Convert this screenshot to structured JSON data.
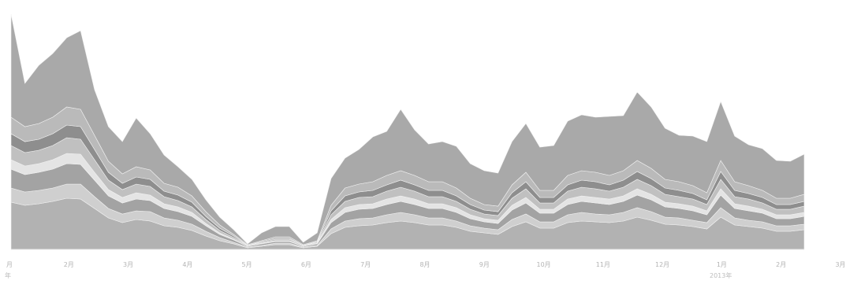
{
  "chart_data": {
    "type": "area",
    "stacked": true,
    "title": "",
    "xlabel": "",
    "ylabel": "",
    "grid": false,
    "legend": "none",
    "x_tick_labels": [
      "月",
      "2月",
      "3月",
      "4月",
      "5月",
      "6月",
      "7月",
      "8月",
      "9月",
      "10月",
      "11月",
      "12月",
      "1月",
      "2月",
      "3月"
    ],
    "footer_left": "年",
    "footer_right": "2013年",
    "ylim": [
      0,
      300
    ],
    "series": [
      {
        "color": "#b2b2b2",
        "values": [
          60,
          56,
          58,
          61,
          65,
          64,
          52,
          40,
          34,
          38,
          36,
          30,
          28,
          24,
          17,
          11,
          7,
          2,
          4,
          6,
          6,
          2,
          4,
          20,
          28,
          30,
          31,
          34,
          36,
          34,
          31,
          31,
          28,
          23,
          21,
          19,
          29,
          35,
          27,
          27,
          34,
          36,
          35,
          34,
          36,
          41,
          37,
          32,
          31,
          29,
          26,
          41,
          31,
          29,
          27,
          23,
          23,
          25
        ]
      },
      {
        "color": "#cfcfcf",
        "values": [
          18,
          17,
          17,
          17,
          18,
          19,
          15,
          12,
          11,
          11,
          12,
          10,
          9,
          8,
          6,
          4,
          2,
          1,
          1,
          2,
          2,
          1,
          1,
          6,
          8,
          9,
          9,
          10,
          11,
          10,
          9,
          9,
          8,
          7,
          6,
          6,
          9,
          10,
          8,
          8,
          10,
          11,
          10,
          10,
          11,
          12,
          11,
          9,
          9,
          8,
          8,
          12,
          9,
          8,
          8,
          7,
          7,
          7
        ]
      },
      {
        "color": "#a3a3a3",
        "values": [
          24,
          22,
          23,
          24,
          26,
          25,
          21,
          16,
          14,
          15,
          14,
          12,
          11,
          10,
          7,
          4,
          3,
          1,
          2,
          2,
          2,
          1,
          2,
          8,
          11,
          12,
          12,
          13,
          14,
          13,
          12,
          12,
          11,
          9,
          8,
          8,
          12,
          14,
          11,
          11,
          13,
          14,
          14,
          13,
          14,
          16,
          15,
          13,
          12,
          12,
          10,
          16,
          12,
          12,
          11,
          9,
          9,
          10
        ]
      },
      {
        "color": "#e4e4e4",
        "values": [
          12,
          11,
          11,
          12,
          13,
          13,
          10,
          8,
          7,
          8,
          7,
          6,
          6,
          5,
          3,
          2,
          1,
          0,
          1,
          1,
          1,
          0,
          1,
          4,
          6,
          6,
          6,
          7,
          7,
          7,
          6,
          6,
          6,
          5,
          4,
          4,
          6,
          7,
          5,
          5,
          7,
          7,
          7,
          7,
          7,
          8,
          7,
          6,
          6,
          6,
          5,
          8,
          6,
          6,
          5,
          5,
          5,
          5
        ]
      },
      {
        "color": "#c0c0c0",
        "values": [
          18,
          17,
          17,
          18,
          20,
          19,
          16,
          12,
          10,
          11,
          11,
          9,
          8,
          7,
          5,
          3,
          2,
          1,
          1,
          2,
          2,
          1,
          1,
          6,
          8,
          9,
          9,
          10,
          11,
          10,
          9,
          9,
          8,
          7,
          6,
          6,
          9,
          11,
          8,
          8,
          10,
          11,
          11,
          10,
          11,
          12,
          11,
          10,
          9,
          9,
          8,
          12,
          9,
          9,
          8,
          7,
          7,
          8
        ]
      },
      {
        "color": "#8e8e8e",
        "values": [
          15,
          14,
          14,
          15,
          16,
          16,
          13,
          10,
          8,
          9,
          9,
          7,
          7,
          6,
          4,
          3,
          2,
          0,
          1,
          1,
          1,
          0,
          1,
          5,
          7,
          7,
          8,
          8,
          9,
          8,
          8,
          8,
          7,
          6,
          5,
          5,
          7,
          9,
          7,
          7,
          8,
          9,
          9,
          8,
          9,
          10,
          9,
          8,
          8,
          7,
          6,
          10,
          8,
          7,
          7,
          6,
          6,
          6
        ]
      },
      {
        "color": "#bababa",
        "values": [
          21,
          19,
          20,
          21,
          23,
          22,
          18,
          14,
          12,
          13,
          12,
          10,
          10,
          8,
          6,
          4,
          2,
          1,
          1,
          2,
          2,
          1,
          1,
          7,
          10,
          10,
          11,
          12,
          12,
          12,
          11,
          11,
          10,
          8,
          7,
          7,
          10,
          12,
          9,
          9,
          12,
          12,
          12,
          12,
          12,
          14,
          13,
          11,
          11,
          10,
          9,
          14,
          11,
          10,
          9,
          8,
          8,
          9
        ]
      },
      {
        "color": "#a9a9a9",
        "values": [
          131,
          55,
          74,
          81,
          88,
          100,
          58,
          44,
          41,
          62,
          46,
          36,
          26,
          21,
          15,
          10,
          6,
          1,
          10,
          13,
          13,
          3,
          10,
          34,
          38,
          44,
          57,
          56,
          78,
          58,
          48,
          51,
          53,
          44,
          43,
          42,
          55,
          62,
          55,
          57,
          69,
          71,
          70,
          75,
          70,
          87,
          78,
          65,
          59,
          63,
          65,
          75,
          58,
          52,
          53,
          48,
          47,
          51
        ]
      }
    ]
  }
}
